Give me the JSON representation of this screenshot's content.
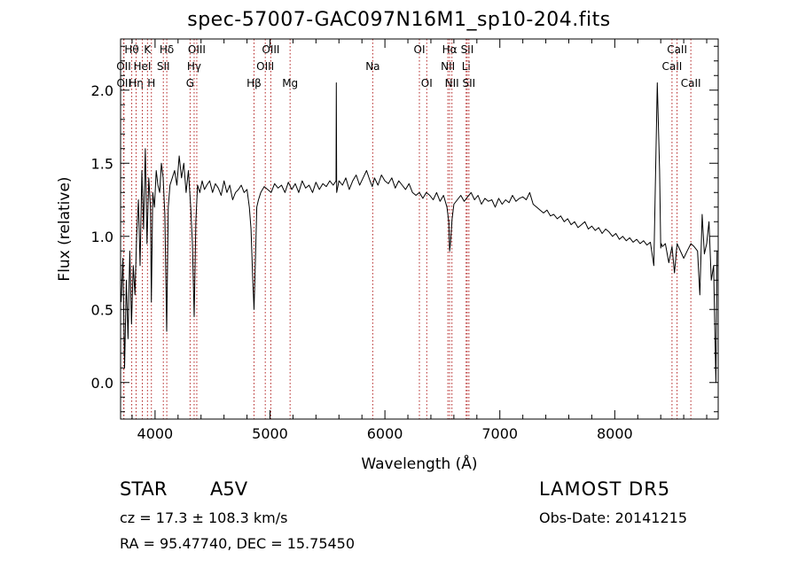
{
  "chart_data": {
    "type": "line",
    "title": "spec-57007-GAC097N16M1_sp10-204.fits",
    "xlabel": "Wavelength (Å)",
    "ylabel": "Flux (relative)",
    "xlim": [
      3700,
      8900
    ],
    "ylim": [
      -0.25,
      2.35
    ],
    "xticks": [
      4000,
      5000,
      6000,
      7000,
      8000
    ],
    "yticks": [
      0.0,
      0.5,
      1.0,
      1.5,
      2.0
    ],
    "xtick_labels": [
      "4000",
      "5000",
      "6000",
      "7000",
      "8000"
    ],
    "ytick_labels": [
      "0.0",
      "0.5",
      "1.0",
      "1.5",
      "2.0"
    ],
    "grid": false,
    "series": [
      {
        "color": "#000000",
        "x": [
          3705,
          3720,
          3735,
          3750,
          3765,
          3780,
          3795,
          3810,
          3825,
          3840,
          3855,
          3870,
          3885,
          3900,
          3915,
          3930,
          3945,
          3960,
          3968,
          3980,
          3995,
          4010,
          4025,
          4040,
          4055,
          4070,
          4085,
          4101,
          4115,
          4130,
          4150,
          4170,
          4190,
          4210,
          4230,
          4250,
          4270,
          4290,
          4310,
          4325,
          4340,
          4355,
          4370,
          4390,
          4410,
          4430,
          4450,
          4475,
          4500,
          4525,
          4550,
          4575,
          4600,
          4625,
          4650,
          4675,
          4700,
          4725,
          4750,
          4775,
          4800,
          4820,
          4835,
          4850,
          4861,
          4872,
          4885,
          4900,
          4920,
          4950,
          4980,
          5010,
          5040,
          5070,
          5100,
          5130,
          5160,
          5190,
          5220,
          5250,
          5280,
          5310,
          5340,
          5370,
          5400,
          5430,
          5460,
          5490,
          5520,
          5550,
          5575,
          5577,
          5580,
          5600,
          5630,
          5660,
          5690,
          5720,
          5750,
          5780,
          5810,
          5840,
          5870,
          5890,
          5910,
          5940,
          5970,
          6000,
          6030,
          6060,
          6090,
          6120,
          6150,
          6180,
          6210,
          6240,
          6270,
          6300,
          6330,
          6360,
          6390,
          6420,
          6450,
          6480,
          6510,
          6540,
          6555,
          6563,
          6570,
          6585,
          6600,
          6630,
          6660,
          6690,
          6720,
          6750,
          6780,
          6810,
          6840,
          6870,
          6900,
          6930,
          6960,
          6990,
          7020,
          7050,
          7080,
          7110,
          7140,
          7170,
          7200,
          7230,
          7260,
          7290,
          7320,
          7350,
          7380,
          7410,
          7440,
          7470,
          7500,
          7530,
          7560,
          7590,
          7620,
          7650,
          7680,
          7710,
          7740,
          7770,
          7800,
          7830,
          7860,
          7890,
          7920,
          7950,
          7980,
          8010,
          8040,
          8070,
          8100,
          8130,
          8160,
          8190,
          8220,
          8250,
          8280,
          8310,
          8340,
          8370,
          8390,
          8400,
          8405,
          8415,
          8440,
          8470,
          8498,
          8520,
          8542,
          8560,
          8600,
          8630,
          8662,
          8690,
          8720,
          8740,
          8760,
          8780,
          8800,
          8820,
          8840,
          8860,
          8880,
          8890
        ],
        "y": [
          0.55,
          0.85,
          0.1,
          0.7,
          0.3,
          0.9,
          0.4,
          0.8,
          0.6,
          1.0,
          1.25,
          0.8,
          1.45,
          1.05,
          1.6,
          0.95,
          1.4,
          1.2,
          0.55,
          1.3,
          1.2,
          1.45,
          1.35,
          1.3,
          1.5,
          1.4,
          1.15,
          0.35,
          1.2,
          1.35,
          1.4,
          1.45,
          1.35,
          1.55,
          1.4,
          1.5,
          1.3,
          1.45,
          1.2,
          0.95,
          0.45,
          1.1,
          1.35,
          1.3,
          1.38,
          1.32,
          1.35,
          1.38,
          1.3,
          1.36,
          1.33,
          1.28,
          1.38,
          1.3,
          1.35,
          1.25,
          1.3,
          1.32,
          1.35,
          1.3,
          1.32,
          1.2,
          1.05,
          0.7,
          0.5,
          0.8,
          1.2,
          1.25,
          1.3,
          1.34,
          1.32,
          1.3,
          1.36,
          1.33,
          1.35,
          1.3,
          1.37,
          1.32,
          1.36,
          1.3,
          1.38,
          1.33,
          1.35,
          1.3,
          1.37,
          1.32,
          1.36,
          1.34,
          1.38,
          1.35,
          1.38,
          2.05,
          1.3,
          1.38,
          1.35,
          1.4,
          1.32,
          1.38,
          1.42,
          1.35,
          1.4,
          1.45,
          1.38,
          1.34,
          1.4,
          1.35,
          1.42,
          1.38,
          1.36,
          1.4,
          1.33,
          1.38,
          1.35,
          1.32,
          1.36,
          1.3,
          1.28,
          1.3,
          1.26,
          1.3,
          1.28,
          1.25,
          1.3,
          1.24,
          1.28,
          1.2,
          1.1,
          0.9,
          0.95,
          1.12,
          1.22,
          1.25,
          1.28,
          1.24,
          1.27,
          1.3,
          1.25,
          1.28,
          1.22,
          1.26,
          1.24,
          1.25,
          1.2,
          1.26,
          1.22,
          1.25,
          1.23,
          1.28,
          1.24,
          1.26,
          1.27,
          1.25,
          1.3,
          1.22,
          1.2,
          1.18,
          1.16,
          1.18,
          1.14,
          1.15,
          1.12,
          1.14,
          1.1,
          1.12,
          1.08,
          1.1,
          1.06,
          1.08,
          1.1,
          1.05,
          1.07,
          1.04,
          1.06,
          1.02,
          1.05,
          1.03,
          1.0,
          1.02,
          0.98,
          1.0,
          0.97,
          0.99,
          0.96,
          0.98,
          0.95,
          0.97,
          0.94,
          0.96,
          0.8,
          2.05,
          1.45,
          0.92,
          0.95,
          0.93,
          0.95,
          0.82,
          0.93,
          0.75,
          0.95,
          0.92,
          0.85,
          0.9,
          0.95,
          0.93,
          0.9,
          0.6,
          1.15,
          0.88,
          0.95,
          1.1,
          0.7,
          0.8,
          0.0,
          0.9
        ]
      }
    ],
    "lines": [
      {
        "wl": 3727,
        "top": "OII",
        "row": 1
      },
      {
        "wl": 3729,
        "top": "OII",
        "row": 2
      },
      {
        "wl": 3797,
        "top": "Hθ",
        "row": 0
      },
      {
        "wl": 3835,
        "top": "Hη",
        "row": 2
      },
      {
        "wl": 3889,
        "top": "HeI",
        "row": 1
      },
      {
        "wl": 3934,
        "top": "K",
        "row": 0
      },
      {
        "wl": 3968,
        "top": "H",
        "row": 2
      },
      {
        "wl": 4072,
        "top": "SII",
        "row": 1
      },
      {
        "wl": 4102,
        "top": "Hδ",
        "row": 0
      },
      {
        "wl": 4305,
        "top": "G",
        "row": 2
      },
      {
        "wl": 4340,
        "top": "Hγ",
        "row": 1
      },
      {
        "wl": 4363,
        "top": "OIII",
        "row": 0
      },
      {
        "wl": 4861,
        "top": "Hβ",
        "row": 2
      },
      {
        "wl": 4959,
        "top": "OIII",
        "row": 1
      },
      {
        "wl": 5007,
        "top": "OIII",
        "row": 0
      },
      {
        "wl": 5175,
        "top": "Mg",
        "row": 2
      },
      {
        "wl": 5894,
        "top": "Na",
        "row": 1
      },
      {
        "wl": 6300,
        "top": "OI",
        "row": 0
      },
      {
        "wl": 6364,
        "top": "OI",
        "row": 2
      },
      {
        "wl": 6548,
        "top": "NII",
        "row": 1
      },
      {
        "wl": 6563,
        "top": "Hα",
        "row": 0
      },
      {
        "wl": 6583,
        "top": "NII",
        "row": 2
      },
      {
        "wl": 6707,
        "top": "Li",
        "row": 1
      },
      {
        "wl": 6716,
        "top": "SII",
        "row": 0
      },
      {
        "wl": 6731,
        "top": "SII",
        "row": 2
      },
      {
        "wl": 8498,
        "top": "CaII",
        "row": 1
      },
      {
        "wl": 8542,
        "top": "CaII",
        "row": 0
      },
      {
        "wl": 8662,
        "top": "CaII",
        "row": 2
      }
    ],
    "line_color": "#b22222"
  },
  "footer": {
    "object_class": "STAR",
    "subclass": "A5V",
    "survey": "LAMOST DR5",
    "cz": "cz = 17.3 ± 108.3 km/s",
    "obs_date": "Obs-Date: 20141215",
    "coords": "RA =  95.47740, DEC =  15.75450"
  }
}
